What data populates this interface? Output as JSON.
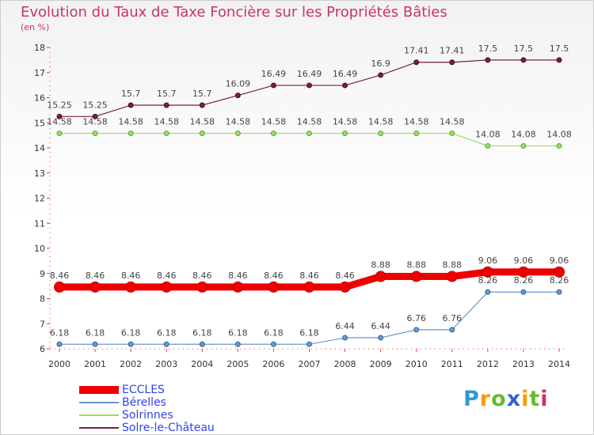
{
  "chart_data": {
    "type": "line",
    "title": "Evolution du Taux de Taxe Foncière sur les Propriétés Bâties",
    "subtitle": "(en %)",
    "x": [
      "2000",
      "2001",
      "2002",
      "2003",
      "2004",
      "2005",
      "2006",
      "2007",
      "2008",
      "2009",
      "2010",
      "2011",
      "2012",
      "2013",
      "2014"
    ],
    "ylim": [
      6,
      18
    ],
    "yticks": [
      "6",
      "7",
      "8",
      "9",
      "10",
      "11",
      "12",
      "13",
      "14",
      "15",
      "16",
      "17",
      "18"
    ],
    "grid": false,
    "legend_position": "bottom-left",
    "series": [
      {
        "name": "ECCLES",
        "color": "#ee0000",
        "values": [
          8.46,
          8.46,
          8.46,
          8.46,
          8.46,
          8.46,
          8.46,
          8.46,
          8.46,
          8.88,
          8.88,
          8.88,
          9.06,
          9.06,
          9.06
        ],
        "labels": [
          "8.46",
          "8.46",
          "8.46",
          "8.46",
          "8.46",
          "8.46",
          "8.46",
          "8.46",
          "8.46",
          "8.88",
          "8.88",
          "8.88",
          "9.06",
          "9.06",
          "9.06"
        ]
      },
      {
        "name": "Bérelles",
        "color": "#6699cc",
        "values": [
          6.18,
          6.18,
          6.18,
          6.18,
          6.18,
          6.18,
          6.18,
          6.18,
          6.44,
          6.44,
          6.76,
          6.76,
          8.26,
          8.26,
          8.26
        ],
        "labels": [
          "6.18",
          "6.18",
          "6.18",
          "6.18",
          "6.18",
          "6.18",
          "6.18",
          "6.18",
          "6.44",
          "6.44",
          "6.76",
          "6.76",
          "8.26",
          "8.26",
          "8.26"
        ]
      },
      {
        "name": "Solrinnes",
        "color": "#99dd66",
        "values": [
          14.58,
          14.58,
          14.58,
          14.58,
          14.58,
          14.58,
          14.58,
          14.58,
          14.58,
          14.58,
          14.58,
          14.58,
          14.08,
          14.08,
          14.08
        ],
        "labels": [
          "14.58",
          "14.58",
          "14.58",
          "14.58",
          "14.58",
          "14.58",
          "14.58",
          "14.58",
          "14.58",
          "14.58",
          "14.58",
          "14.58",
          "14.08",
          "14.08",
          "14.08"
        ]
      },
      {
        "name": "Solre-le-Château",
        "color": "#772233",
        "values": [
          15.25,
          15.25,
          15.7,
          15.7,
          15.7,
          16.09,
          16.49,
          16.49,
          16.49,
          16.9,
          17.41,
          17.41,
          17.5,
          17.5,
          17.5
        ],
        "labels": [
          "15.25",
          "15.25",
          "15.7",
          "15.7",
          "15.7",
          "16.09",
          "16.49",
          "16.49",
          "16.49",
          "16.9",
          "17.41",
          "17.41",
          "17.5",
          "17.5",
          "17.5"
        ]
      }
    ]
  },
  "logo": {
    "letters": [
      "P",
      "r",
      "o",
      "x",
      "i",
      "t",
      "i"
    ],
    "colors": [
      "#3399cc",
      "#ff9900",
      "#66bb33",
      "#3366cc",
      "#ff9900",
      "#66bb33",
      "#cc3366"
    ]
  }
}
